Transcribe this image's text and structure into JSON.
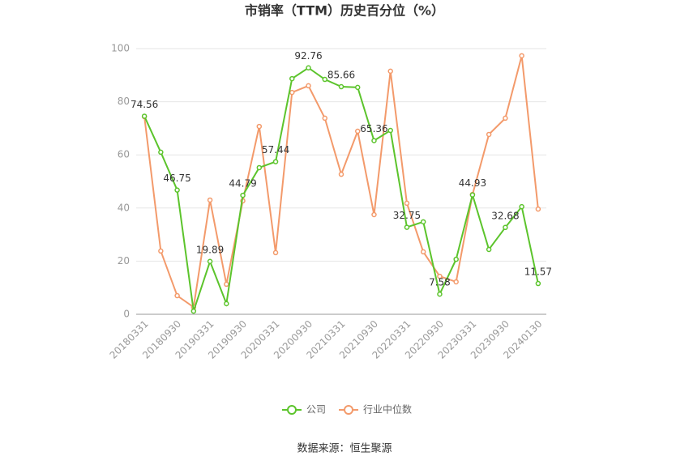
{
  "chart_data": {
    "type": "line",
    "title": "市销率（TTM）历史百分位（%）",
    "categories": [
      "20180331",
      null,
      "20180930",
      null,
      "20190331",
      null,
      "20190930",
      null,
      "20200331",
      null,
      "20200930",
      null,
      "20210331",
      null,
      "20210930",
      null,
      "20220331",
      null,
      "20220930",
      null,
      "20230331",
      null,
      "20230930",
      null,
      "20240130"
    ],
    "series": [
      {
        "name": "公司",
        "color": "#5cc42c",
        "values": [
          74.56,
          61,
          46.75,
          1.2,
          19.89,
          4,
          44.79,
          55.2,
          57.44,
          88.7,
          92.76,
          88.4,
          85.66,
          85.4,
          65.36,
          69.2,
          32.75,
          34.8,
          7.58,
          20.7,
          44.93,
          24.4,
          32.68,
          40.5,
          11.57
        ],
        "value_labels": [
          "74.56",
          null,
          "46.75",
          null,
          "19.89",
          null,
          "44.79",
          null,
          "57.44",
          null,
          "92.76",
          null,
          "85.66",
          null,
          "65.36",
          null,
          "32.75",
          null,
          "7.58",
          null,
          "44.93",
          null,
          "32.68",
          null,
          "11.57"
        ]
      },
      {
        "name": "行业中位数",
        "color": "#f39a6b",
        "values": [
          74.4,
          23.8,
          7,
          2.7,
          43,
          11.3,
          42.7,
          70.7,
          23.2,
          83.5,
          86,
          73.8,
          52.7,
          68.9,
          37.5,
          91.5,
          41.8,
          23.5,
          14.3,
          12.2,
          45.1,
          67.7,
          73.8,
          97.3,
          39.6
        ]
      }
    ],
    "ylim": [
      0,
      100
    ],
    "yticks": [
      0,
      20,
      40,
      60,
      80,
      100
    ],
    "grid": true,
    "source": "数据来源：恒生聚源"
  }
}
